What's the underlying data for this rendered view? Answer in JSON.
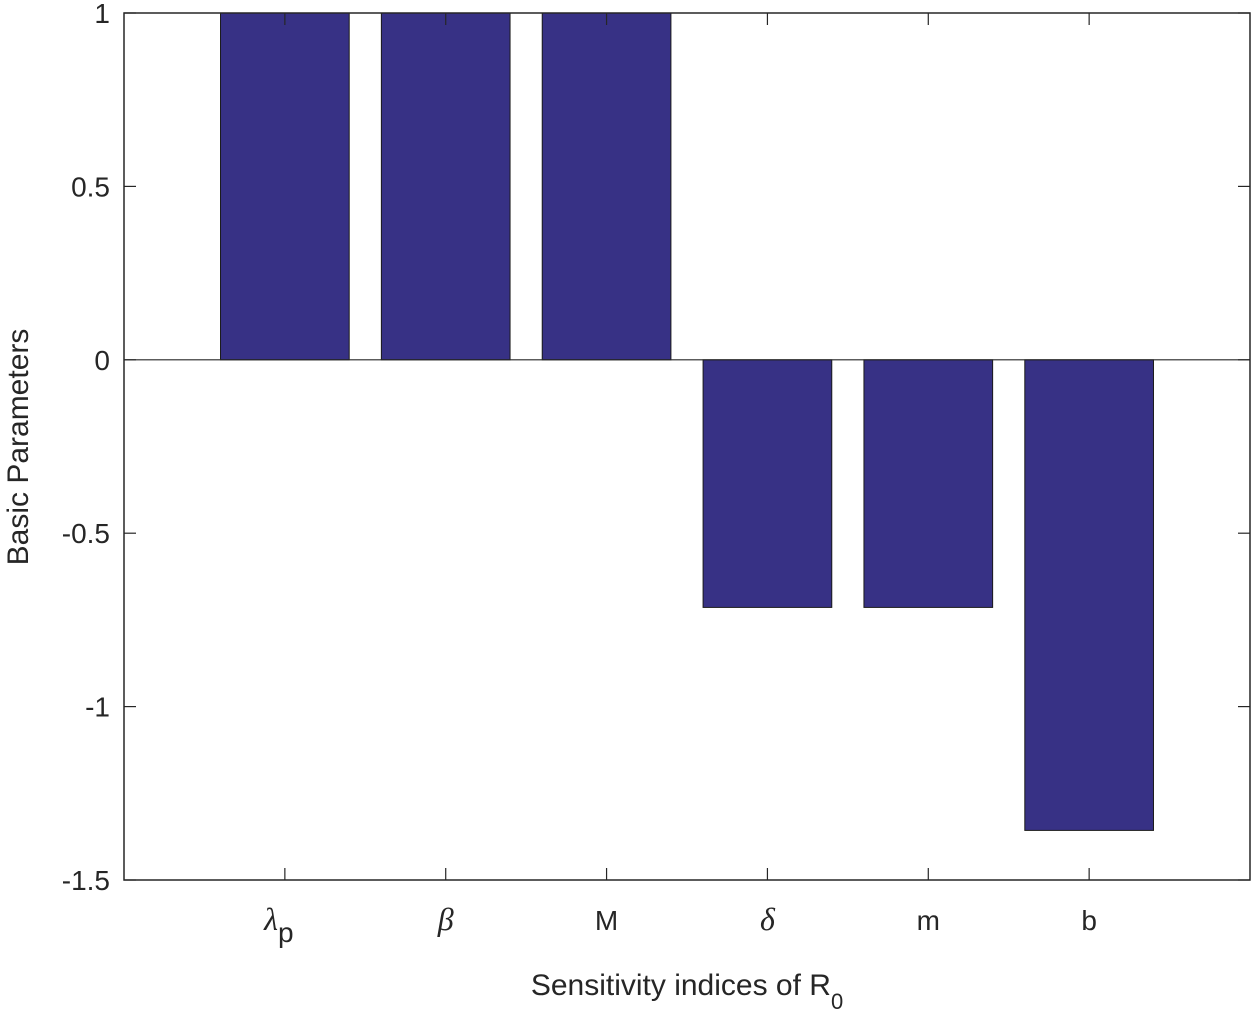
{
  "chart_data": {
    "type": "bar",
    "categories": [
      {
        "main": "λ",
        "sub": "p",
        "greek": true
      },
      {
        "main": "β",
        "sub": "",
        "greek": true
      },
      {
        "main": "M",
        "sub": "",
        "greek": false
      },
      {
        "main": "δ",
        "sub": "",
        "greek": true
      },
      {
        "main": "m",
        "sub": "",
        "greek": false
      },
      {
        "main": "b",
        "sub": "",
        "greek": false
      }
    ],
    "values": [
      1,
      1,
      1,
      -0.714,
      -0.714,
      -1.357
    ],
    "xlabel": {
      "main": "Sensitivity indices of R",
      "sub": "0"
    },
    "ylabel": "Basic Parameters",
    "ylim": [
      -1.5,
      1
    ],
    "yticks": [
      -1.5,
      -1,
      -0.5,
      0,
      0.5,
      1
    ],
    "ytick_labels": [
      "-1.5",
      "-1",
      "-0.5",
      "0",
      "0.5",
      "1"
    ],
    "xlim": [
      0,
      7
    ],
    "grid": false,
    "bar_color": "#373185",
    "bar_edge_color": "#1a1a1a",
    "axis_color": "#262626"
  }
}
